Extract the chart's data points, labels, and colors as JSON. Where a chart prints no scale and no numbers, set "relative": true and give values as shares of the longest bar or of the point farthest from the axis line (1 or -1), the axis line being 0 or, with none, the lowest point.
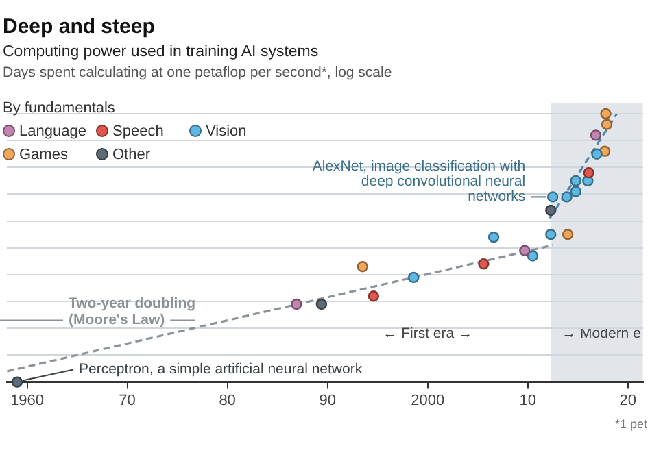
{
  "chart_data": {
    "type": "scatter",
    "title": "Deep and steep",
    "subtitle": "Computing power used in training AI systems\nDays spent calculating at one petaflop per second*, log scale",
    "relative": true,
    "legend_title": "By fundamentals",
    "legend": "top left",
    "marker": "circle",
    "grid": "y",
    "xlim": [
      1958,
      2021.5
    ],
    "xticks": [
      {
        "value": 1960,
        "label": "1960"
      },
      {
        "value": 1970,
        "label": "70"
      },
      {
        "value": 1980,
        "label": "80"
      },
      {
        "value": 1990,
        "label": "90"
      },
      {
        "value": 2000,
        "label": "2000"
      },
      {
        "value": 2010,
        "label": "10"
      },
      {
        "value": 2020,
        "label": "20"
      }
    ],
    "series": [
      {
        "name": "Language",
        "color": "#c185b0",
        "x": [
          1986.9,
          2009.7,
          2016.8
        ],
        "values": [
          0.29,
          0.49,
          0.92
        ]
      },
      {
        "name": "Speech",
        "color": "#e0574f",
        "x": [
          1994.6,
          2005.6,
          2016.1
        ],
        "values": [
          0.32,
          0.44,
          0.78
        ]
      },
      {
        "name": "Vision",
        "color": "#5fb8e3",
        "x": [
          1998.6,
          2006.6,
          2010.5,
          2012.3,
          2012.5,
          2013.9,
          2014.8,
          2014.8,
          2016.0,
          2016.9
        ],
        "values": [
          0.39,
          0.54,
          0.47,
          0.55,
          0.69,
          0.69,
          0.71,
          0.75,
          0.75,
          0.85
        ]
      },
      {
        "name": "Games",
        "color": "#f2a65a",
        "x": [
          1993.5,
          2014.0,
          2017.7,
          2017.9,
          2017.8
        ],
        "values": [
          0.43,
          0.55,
          0.86,
          0.96,
          1.0
        ]
      },
      {
        "name": "Other",
        "color": "#5e6b75",
        "x": [
          1959.0,
          1989.4,
          2012.3
        ],
        "values": [
          0,
          0.29,
          0.64
        ]
      },
      {
        "name": "Two-year doubling (Moore's Law)",
        "type": "line",
        "line_style": "dashed",
        "marker": "none",
        "color": "#8a9399",
        "x": [
          1958,
          2012.5
        ],
        "values": [
          0.04,
          0.51
        ]
      },
      {
        "type": "line",
        "line_style": "dashed",
        "marker": "none",
        "color": "#4f87ad",
        "x": [
          2012.2,
          2018.9
        ],
        "values": [
          0.61,
          1.0
        ]
      }
    ],
    "bands": [
      {
        "axis": "x",
        "from": 2012.3,
        "to": 2021.5,
        "label": "→ Modern e",
        "color": "#e2e6ea"
      }
    ],
    "annotations": [
      {
        "text": "AlexNet, image classification with deep convolutional neural networks",
        "x": 2012.5,
        "y": 0.69
      },
      {
        "text": "Perceptron, a simple artificial neural network",
        "x": 1959.0,
        "y": 0
      },
      "← First era →",
      "*1 pet"
    ]
  }
}
